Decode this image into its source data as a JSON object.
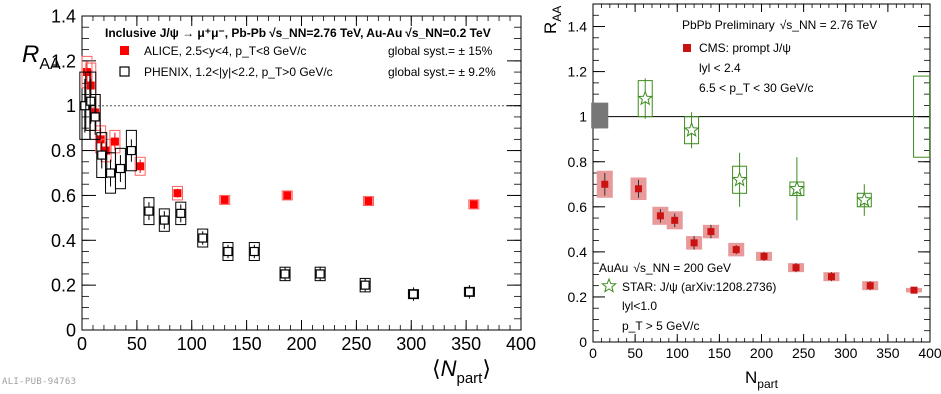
{
  "footer_id": "ALI-PUB-94763",
  "chart_data": [
    {
      "type": "scatter",
      "ylabel": "R_AA",
      "xlabel": "⟨N_part⟩",
      "xlim": [
        0,
        400
      ],
      "ylim": [
        0,
        1.4
      ],
      "xticks": [
        0,
        50,
        100,
        150,
        200,
        250,
        300,
        350,
        400
      ],
      "yticks": [
        0,
        0.2,
        0.4,
        0.6,
        0.8,
        1,
        1.2,
        1.4
      ],
      "ytick_labels": [
        "0",
        "0.2",
        "0.4",
        "0.6",
        "0.8",
        "1",
        "1.2",
        "1.4"
      ],
      "reference_line": 1,
      "header": {
        "prefix": "Inclusive J/ψ → μ⁺μ⁻, Pb-Pb",
        "pb_energy": "√s_NN=2.76 TeV",
        "mid": ", Au-Au",
        "au_energy": "√s_NN=0.2 TeV"
      },
      "legend": [
        {
          "label": "ALICE, 2.5<y<4, p_T<8 GeV/c",
          "syst": "global syst.= ± 15%"
        },
        {
          "label": "PHENIX, 1.2<|y|<2.2, p_T>0 GeV/c",
          "syst": "global syst.= ± 9.2%"
        }
      ],
      "series": [
        {
          "name": "ALICE, 2.5<y<4, p_T<8 GeV/c",
          "color": "#ff0000",
          "marker": "filled-square",
          "points": [
            {
              "x": 4.5,
              "y": 1.15,
              "stat": 0.05,
              "syst": 0.07
            },
            {
              "x": 8,
              "y": 1.09,
              "stat": 0.07,
              "syst": 0.1
            },
            {
              "x": 12,
              "y": 0.97,
              "stat": 0.06,
              "syst": 0.08
            },
            {
              "x": 17,
              "y": 0.85,
              "stat": 0.05,
              "syst": 0.06
            },
            {
              "x": 22,
              "y": 0.8,
              "stat": 0.04,
              "syst": 0.05
            },
            {
              "x": 30,
              "y": 0.84,
              "stat": 0.04,
              "syst": 0.05
            },
            {
              "x": 53,
              "y": 0.73,
              "stat": 0.03,
              "syst": 0.04
            },
            {
              "x": 87,
              "y": 0.61,
              "stat": 0.02,
              "syst": 0.03
            },
            {
              "x": 130,
              "y": 0.58,
              "stat": 0.01,
              "syst": 0.02
            },
            {
              "x": 187,
              "y": 0.6,
              "stat": 0.01,
              "syst": 0.02
            },
            {
              "x": 261,
              "y": 0.575,
              "stat": 0.01,
              "syst": 0.02
            },
            {
              "x": 357,
              "y": 0.56,
              "stat": 0.01,
              "syst": 0.02
            }
          ]
        },
        {
          "name": "PHENIX, 1.2<|y|<2.2, p_T>0 GeV/c",
          "color": "#000000",
          "marker": "open-square",
          "points": [
            {
              "x": 2.6,
              "y": 1.0,
              "stat": 0.12,
              "syst": 0.15
            },
            {
              "x": 8,
              "y": 1.02,
              "stat": 0.1,
              "syst": 0.13
            },
            {
              "x": 12,
              "y": 0.95,
              "stat": 0.08,
              "syst": 0.1
            },
            {
              "x": 18,
              "y": 0.78,
              "stat": 0.06,
              "syst": 0.1
            },
            {
              "x": 26,
              "y": 0.7,
              "stat": 0.06,
              "syst": 0.09
            },
            {
              "x": 35,
              "y": 0.72,
              "stat": 0.06,
              "syst": 0.09
            },
            {
              "x": 45,
              "y": 0.8,
              "stat": 0.05,
              "syst": 0.09
            },
            {
              "x": 61,
              "y": 0.53,
              "stat": 0.04,
              "syst": 0.06
            },
            {
              "x": 75,
              "y": 0.49,
              "stat": 0.04,
              "syst": 0.05
            },
            {
              "x": 90,
              "y": 0.52,
              "stat": 0.04,
              "syst": 0.05
            },
            {
              "x": 110,
              "y": 0.41,
              "stat": 0.03,
              "syst": 0.04
            },
            {
              "x": 133,
              "y": 0.35,
              "stat": 0.03,
              "syst": 0.04
            },
            {
              "x": 157,
              "y": 0.35,
              "stat": 0.03,
              "syst": 0.04
            },
            {
              "x": 185,
              "y": 0.25,
              "stat": 0.03,
              "syst": 0.03
            },
            {
              "x": 217,
              "y": 0.25,
              "stat": 0.03,
              "syst": 0.03
            },
            {
              "x": 258,
              "y": 0.2,
              "stat": 0.03,
              "syst": 0.03
            },
            {
              "x": 302,
              "y": 0.16,
              "stat": 0.03,
              "syst": 0.02
            },
            {
              "x": 353,
              "y": 0.17,
              "stat": 0.03,
              "syst": 0.02
            }
          ]
        }
      ]
    },
    {
      "type": "scatter",
      "ylabel": "R_AA",
      "xlabel": "N_part",
      "xlim": [
        0,
        400
      ],
      "ylim": [
        0,
        1.5
      ],
      "xticks": [
        0,
        50,
        100,
        150,
        200,
        250,
        300,
        350,
        400
      ],
      "yticks": [
        0,
        0.2,
        0.4,
        0.6,
        0.8,
        1,
        1.2,
        1.4
      ],
      "ytick_labels": [
        "0",
        "0.2",
        "0.4",
        "0.6",
        "0.8",
        "1",
        "1.2",
        "1.4"
      ],
      "reference_line": 1,
      "annotations": {
        "pbpb_title": "PbPb Preliminary",
        "pbpb_energy": "√s_NN = 2.76 TeV",
        "cms_label": "CMS: prompt J/ψ",
        "cms_y": "lyl < 2.4",
        "cms_pt": "6.5 <  p_T < 30 GeV/c",
        "auau_title": "AuAu",
        "auau_energy": "√s_NN = 200 GeV",
        "star_label": "STAR: J/ψ (arXiv:1208.2736)",
        "star_y": "lyl<1.0",
        "star_pt": "p_T > 5 GeV/c"
      },
      "global_syst": [
        {
          "x": 8,
          "low": 0.95,
          "high": 1.06,
          "color": "#777777"
        },
        {
          "x": 390,
          "low": 0.82,
          "high": 1.18,
          "color": "#3c8c1e"
        }
      ],
      "series": [
        {
          "name": "CMS: prompt J/ψ",
          "color": "#cc1111",
          "marker": "filled-square",
          "points": [
            {
              "x": 14,
              "y": 0.7,
              "stat": 0.05,
              "syst": 0.06
            },
            {
              "x": 54,
              "y": 0.68,
              "stat": 0.04,
              "syst": 0.05
            },
            {
              "x": 80,
              "y": 0.56,
              "stat": 0.03,
              "syst": 0.04
            },
            {
              "x": 97,
              "y": 0.54,
              "stat": 0.03,
              "syst": 0.04
            },
            {
              "x": 120,
              "y": 0.44,
              "stat": 0.03,
              "syst": 0.03
            },
            {
              "x": 140,
              "y": 0.49,
              "stat": 0.03,
              "syst": 0.03
            },
            {
              "x": 170,
              "y": 0.41,
              "stat": 0.02,
              "syst": 0.03
            },
            {
              "x": 203,
              "y": 0.38,
              "stat": 0.02,
              "syst": 0.02
            },
            {
              "x": 241,
              "y": 0.33,
              "stat": 0.02,
              "syst": 0.02
            },
            {
              "x": 283,
              "y": 0.29,
              "stat": 0.02,
              "syst": 0.02
            },
            {
              "x": 329,
              "y": 0.25,
              "stat": 0.02,
              "syst": 0.02
            },
            {
              "x": 381,
              "y": 0.23,
              "stat": 0.01,
              "syst": 0.01
            }
          ]
        },
        {
          "name": "STAR: J/ψ (arXiv:1208.2736)",
          "color": "#3c8c1e",
          "marker": "open-star",
          "points": [
            {
              "x": 62,
              "y": 1.08,
              "stat": 0.09,
              "syst": 0.08
            },
            {
              "x": 117,
              "y": 0.94,
              "stat": 0.08,
              "syst": 0.06
            },
            {
              "x": 174,
              "y": 0.72,
              "stat": 0.12,
              "syst": 0.06
            },
            {
              "x": 242,
              "y": 0.68,
              "stat": 0.14,
              "syst": 0.03
            },
            {
              "x": 322,
              "y": 0.63,
              "stat": 0.07,
              "syst": 0.03
            }
          ]
        }
      ]
    }
  ]
}
